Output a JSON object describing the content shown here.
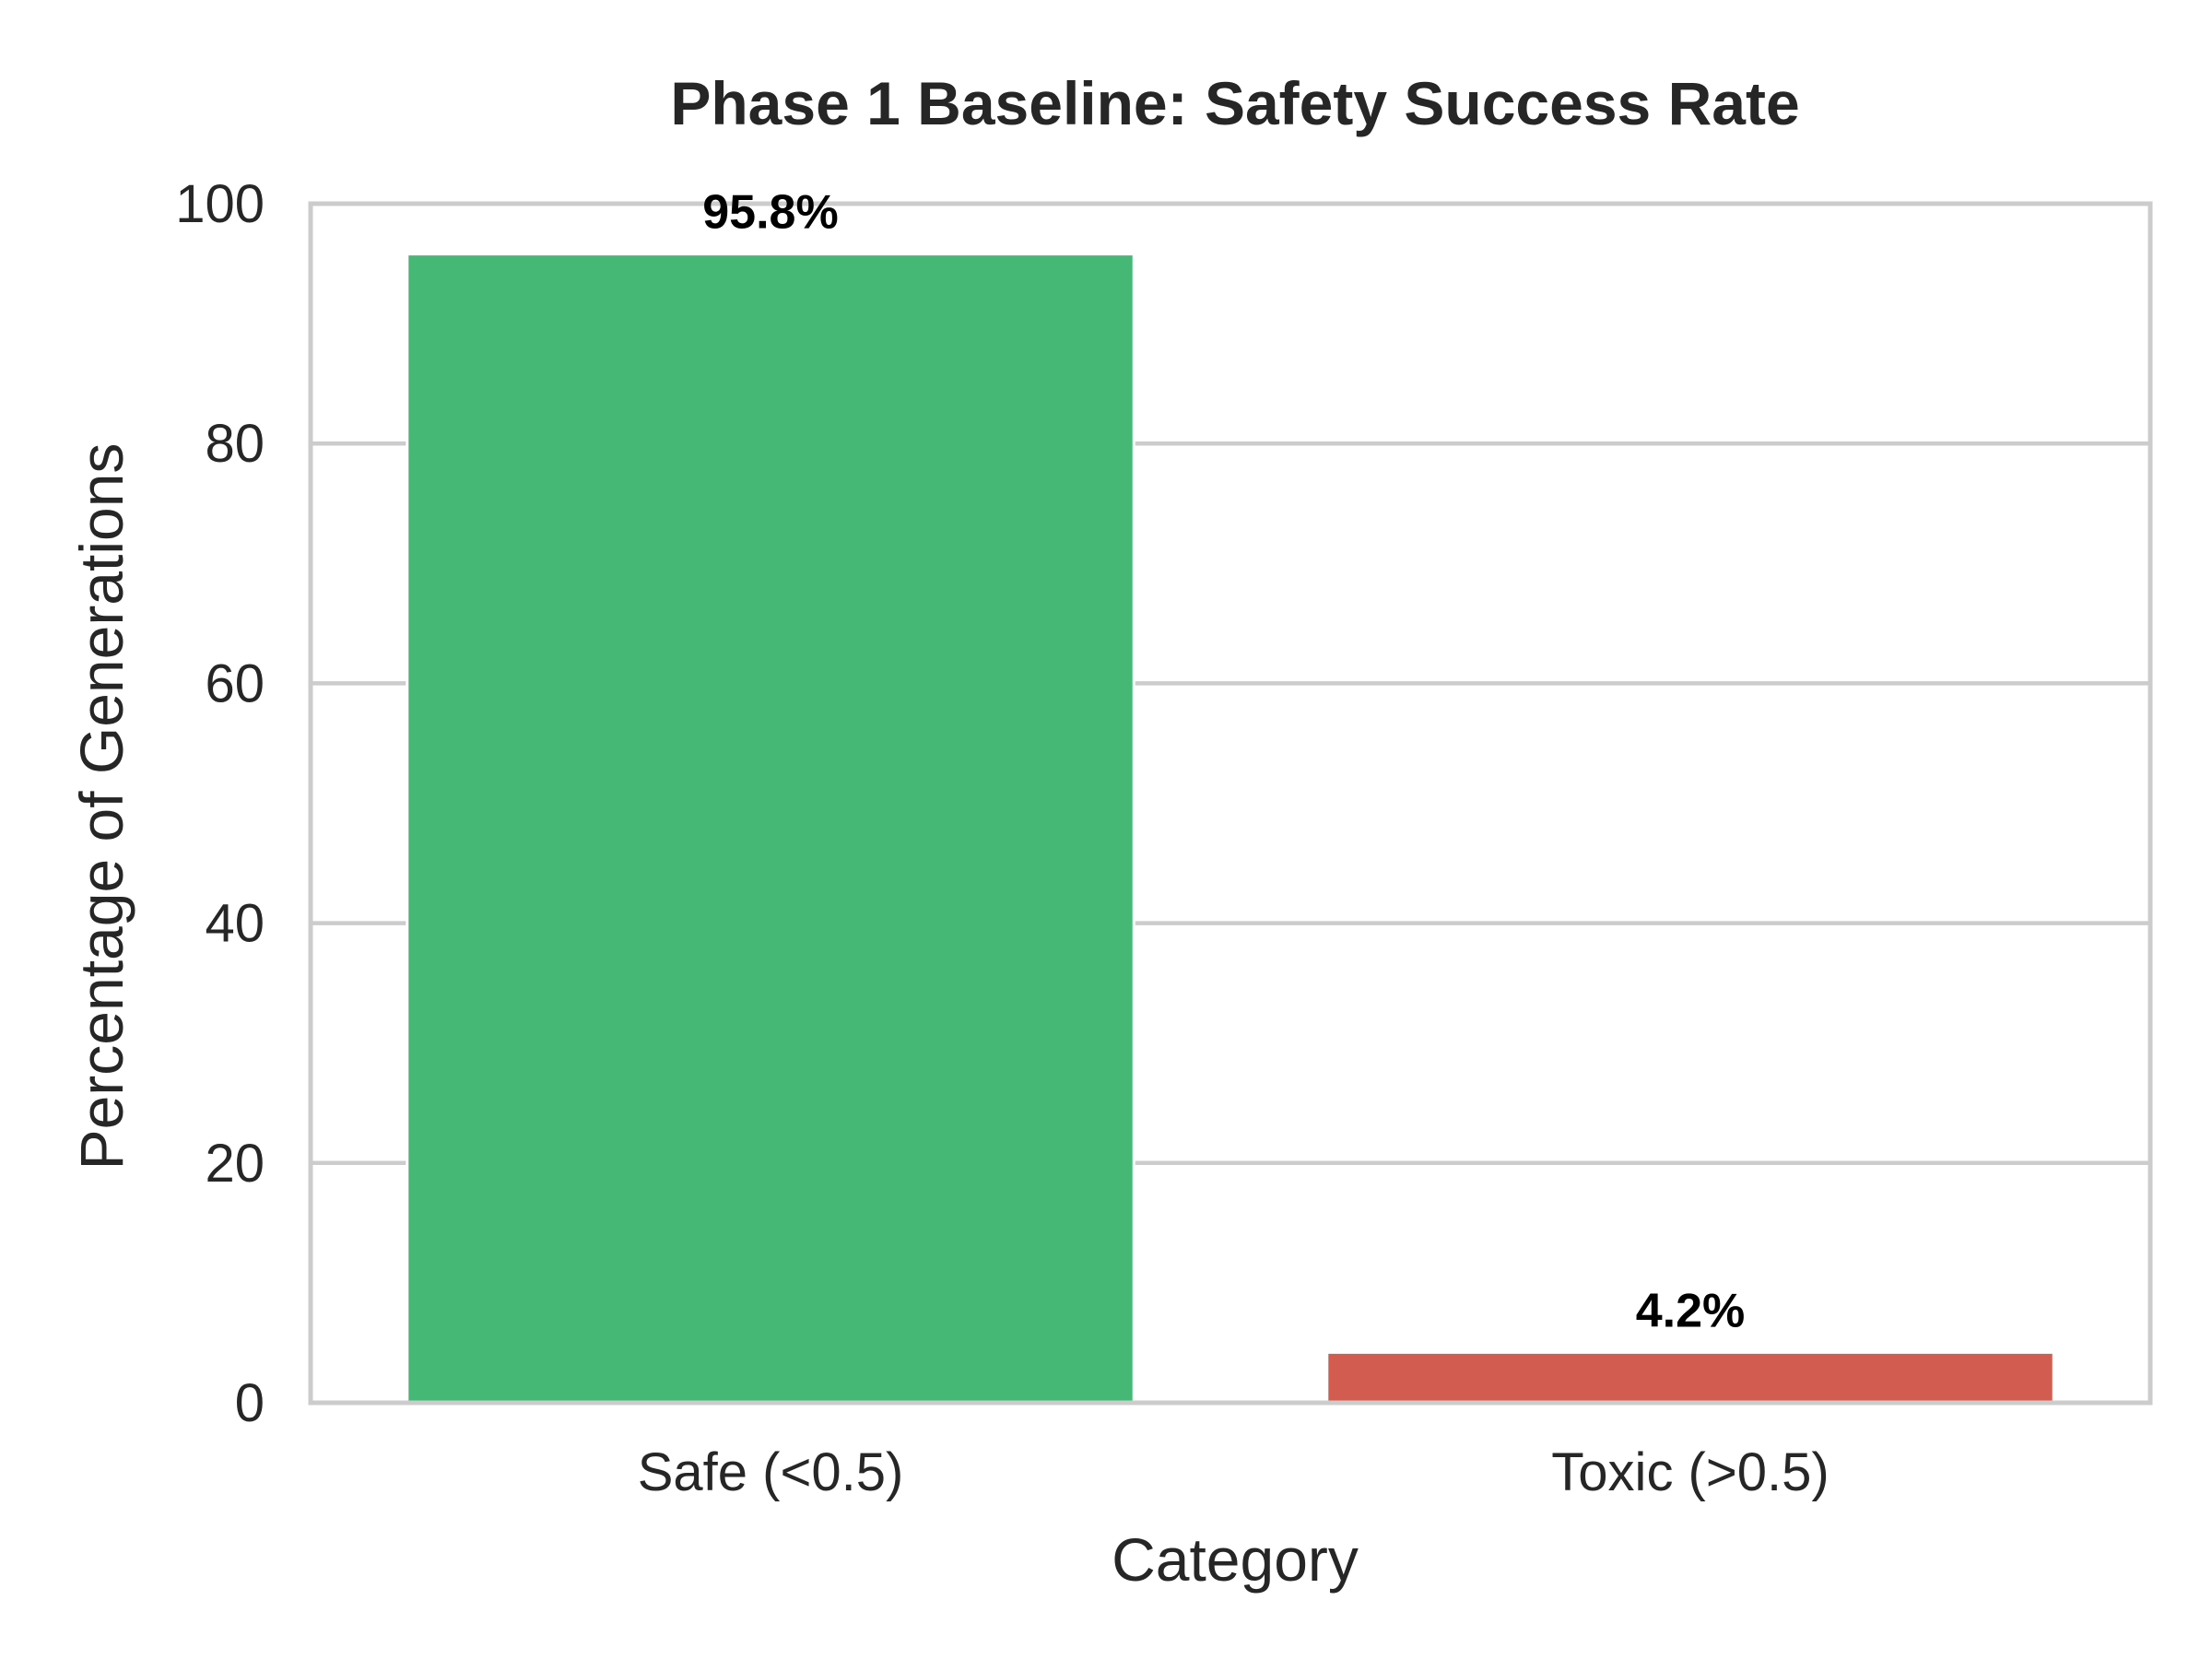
{
  "chart_data": {
    "type": "bar",
    "title": "Phase 1 Baseline: Safety Success Rate",
    "xlabel": "Category",
    "ylabel": "Percentage of Generations",
    "categories": [
      "Safe (<0.5)",
      "Toxic (>0.5)"
    ],
    "values": [
      95.8,
      4.2
    ],
    "data_labels": [
      "95.8%",
      "4.2%"
    ],
    "colors": [
      "#45b876",
      "#d35c50"
    ],
    "ylim": [
      0,
      100
    ],
    "yticks": [
      0,
      20,
      40,
      60,
      80,
      100
    ],
    "grid": "horizontal",
    "legend": "none"
  }
}
